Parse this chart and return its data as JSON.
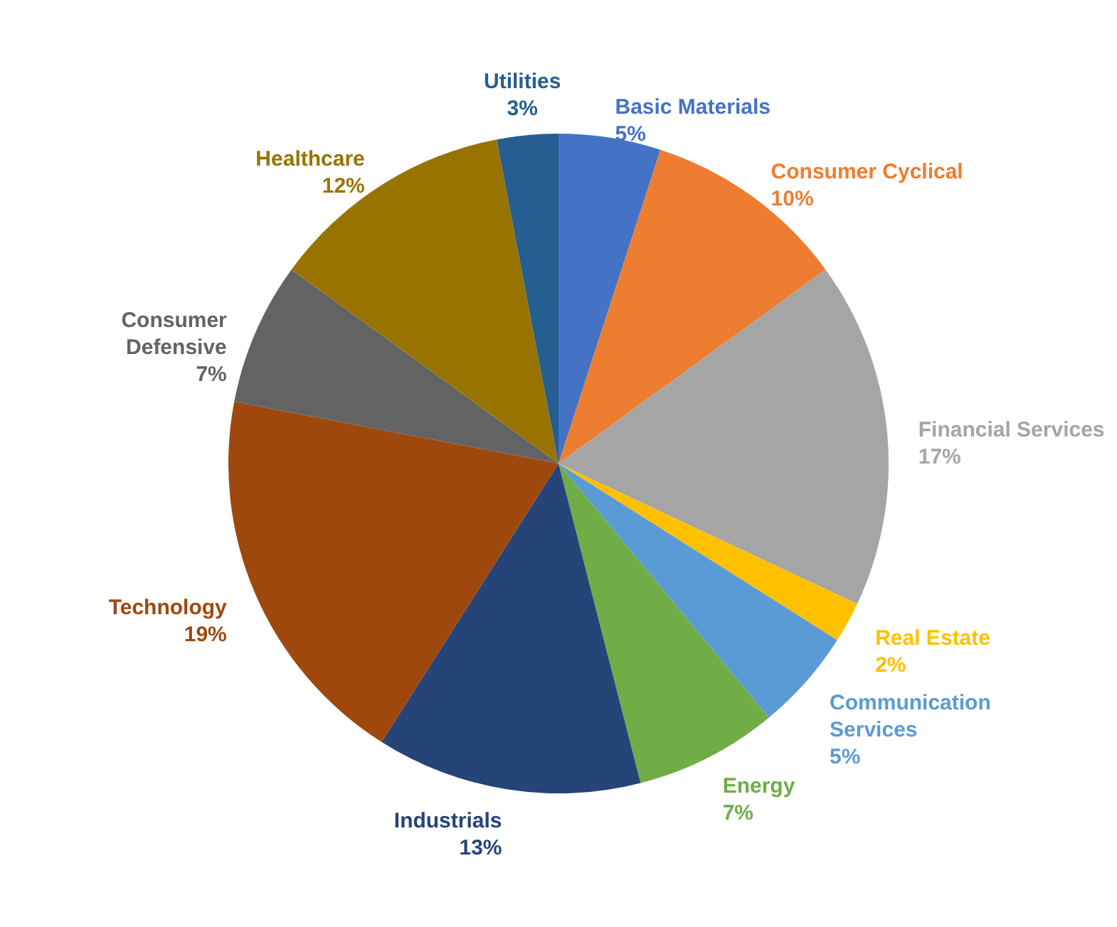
{
  "chart_data": {
    "type": "pie",
    "categories": [
      "Basic Materials",
      "Consumer Cyclical",
      "Financial Services",
      "Real Estate",
      "Communication Services",
      "Energy",
      "Industrials",
      "Technology",
      "Consumer Defensive",
      "Healthcare",
      "Utilities"
    ],
    "values": [
      5,
      10,
      17,
      2,
      5,
      7,
      13,
      19,
      7,
      12,
      3
    ],
    "value_labels": [
      "5%",
      "10%",
      "17%",
      "2%",
      "5%",
      "7%",
      "13%",
      "19%",
      "7%",
      "12%",
      "3%"
    ],
    "colors": [
      "#4472c4",
      "#ed7d31",
      "#a5a5a5",
      "#ffc000",
      "#5b9bd5",
      "#70ad47",
      "#264478",
      "#9e480e",
      "#636363",
      "#997300",
      "#255e91"
    ]
  }
}
